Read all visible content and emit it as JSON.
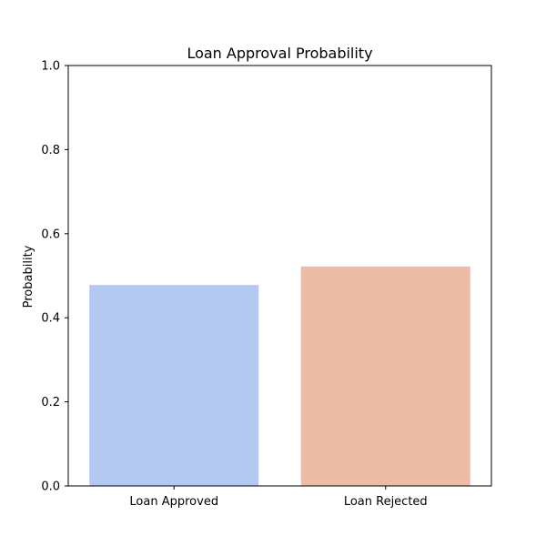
{
  "chart_data": {
    "type": "bar",
    "title": "Loan Approval Probability",
    "xlabel": "",
    "ylabel": "Probability",
    "categories": [
      "Loan Approved",
      "Loan Rejected"
    ],
    "values": [
      0.478,
      0.522
    ],
    "colors": [
      "#b4c9f2",
      "#ecbca5"
    ],
    "ylim": [
      0.0,
      1.0
    ],
    "yticks": [
      "0.0",
      "0.2",
      "0.4",
      "0.6",
      "0.8",
      "1.0"
    ],
    "grid": false,
    "legend": "none"
  }
}
